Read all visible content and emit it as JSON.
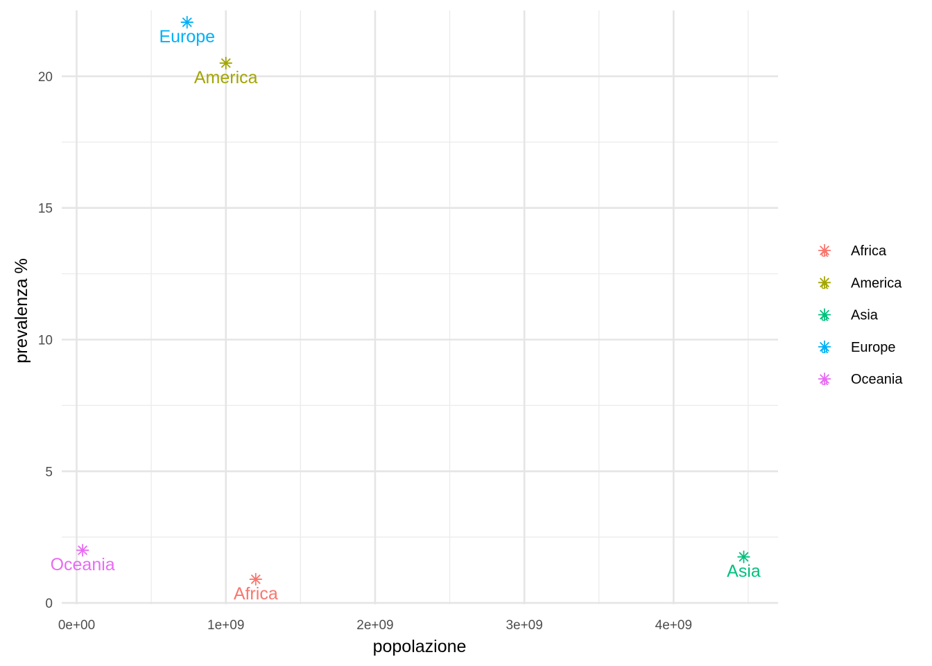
{
  "chart_data": {
    "type": "scatter",
    "xlabel": "popolazione",
    "ylabel": "prevalenza %",
    "xlim": [
      -100000000,
      4700000000
    ],
    "ylim": [
      -0.05,
      22.5
    ],
    "x_ticks": [
      0,
      1000000000,
      2000000000,
      3000000000,
      4000000000
    ],
    "x_tick_labels": [
      "0e+00",
      "1e+09",
      "2e+09",
      "3e+09",
      "4e+09"
    ],
    "y_ticks": [
      0,
      5,
      10,
      15,
      20
    ],
    "y_tick_labels": [
      "0",
      "5",
      "10",
      "15",
      "20"
    ],
    "grid": true,
    "legend_position": "right",
    "marker": "asterisk",
    "points": [
      {
        "name": "Africa",
        "x": 1200000000,
        "y": 0.9,
        "color": "#F8766D"
      },
      {
        "name": "America",
        "x": 1000000000,
        "y": 20.5,
        "color": "#A3A500"
      },
      {
        "name": "Asia",
        "x": 4470000000,
        "y": 1.75,
        "color": "#00BF7D"
      },
      {
        "name": "Europe",
        "x": 740000000,
        "y": 22.05,
        "color": "#00B0F6"
      },
      {
        "name": "Oceania",
        "x": 40000000,
        "y": 2.0,
        "color": "#E76BF3"
      }
    ],
    "legend": [
      "Africa",
      "America",
      "Asia",
      "Europe",
      "Oceania"
    ],
    "legend_key_glyph": "a"
  }
}
